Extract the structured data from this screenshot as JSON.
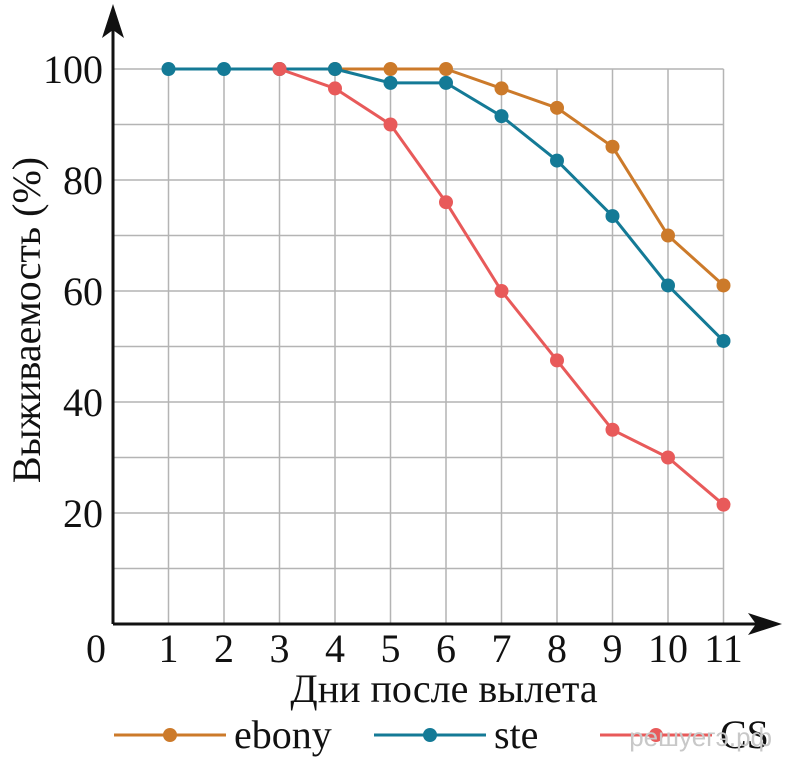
{
  "chart_data": {
    "type": "line",
    "xlabel": "Дни после вылета",
    "ylabel": "Выживаемость (%)",
    "xlim": [
      0,
      11
    ],
    "ylim": [
      0,
      100
    ],
    "x_ticks": [
      "0",
      "1",
      "2",
      "3",
      "4",
      "5",
      "6",
      "7",
      "8",
      "9",
      "10",
      "11"
    ],
    "y_ticks": [
      "20",
      "40",
      "60",
      "80",
      "100"
    ],
    "grid": true,
    "legend_position": "bottom",
    "series": [
      {
        "name": "ebony",
        "color": "#cc7a2a",
        "x": [
          3,
          4,
          5,
          6,
          7,
          8,
          9,
          10,
          11
        ],
        "y": [
          100,
          100,
          100,
          100,
          96.5,
          93,
          86,
          70,
          61
        ]
      },
      {
        "name": "ste",
        "color": "#147a96",
        "x": [
          1,
          2,
          3,
          4,
          5,
          6,
          7,
          8,
          9,
          10,
          11
        ],
        "y": [
          100,
          100,
          100,
          100,
          97.5,
          97.5,
          91.5,
          83.5,
          73.5,
          61,
          51
        ]
      },
      {
        "name": "CS",
        "color": "#e85a5a",
        "x": [
          3,
          4,
          5,
          6,
          7,
          8,
          9,
          10,
          11
        ],
        "y": [
          100,
          96.5,
          90,
          76,
          60,
          47.5,
          35,
          30,
          21.5
        ]
      }
    ]
  },
  "watermark": "решуегэ.рф"
}
